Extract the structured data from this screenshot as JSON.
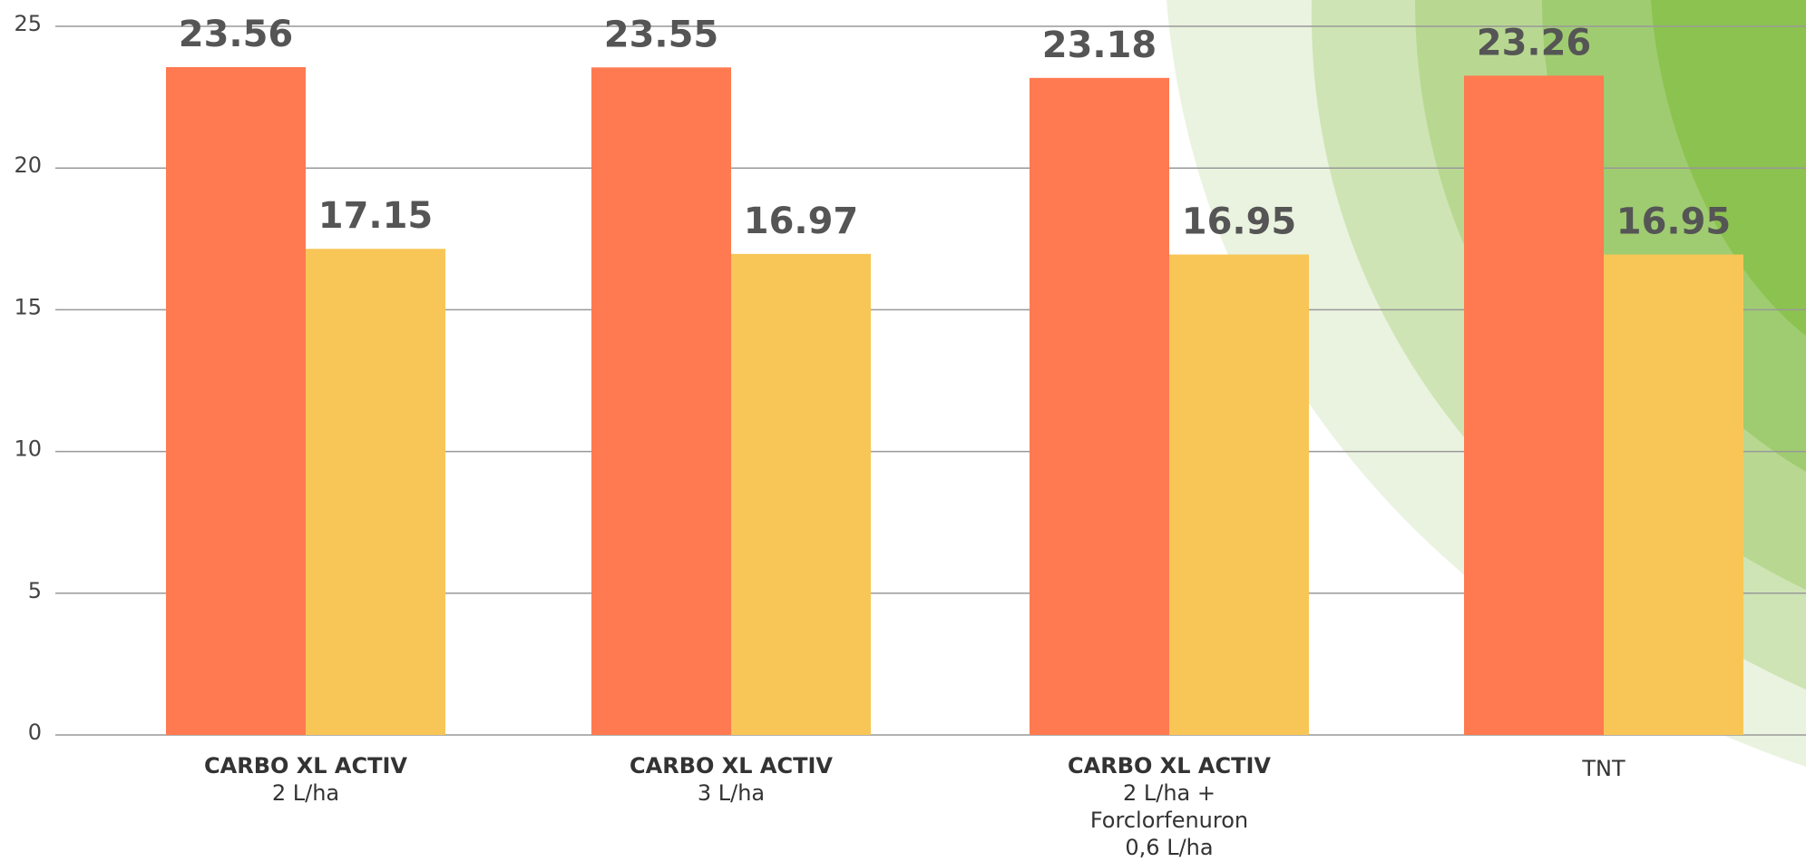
{
  "chart_data": {
    "type": "bar",
    "categories": [
      [
        "CARBO XL ACTIV",
        "2 L/ha"
      ],
      [
        "CARBO XL ACTIV",
        "3 L/ha"
      ],
      [
        "CARBO XL ACTIV",
        "2 L/ha +",
        "Forclorfenuron",
        "0,6 L/ha"
      ],
      [
        "TNT"
      ]
    ],
    "series": [
      {
        "color": "#ff7a50",
        "values": [
          23.56,
          23.55,
          23.18,
          23.26
        ]
      },
      {
        "color": "#f7c657",
        "values": [
          17.15,
          16.97,
          16.95,
          16.95
        ]
      }
    ],
    "ylim": [
      0,
      25
    ],
    "yticks": [
      0,
      5,
      10,
      15,
      20,
      25
    ],
    "grid": true
  }
}
